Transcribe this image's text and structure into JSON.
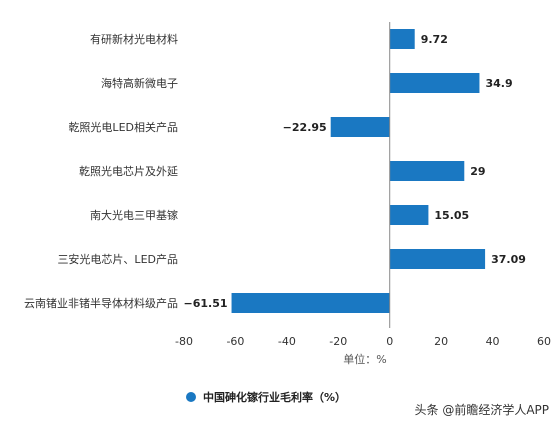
{
  "chart_data": {
    "type": "bar",
    "orientation": "horizontal",
    "categories": [
      "有研新材光电材料",
      "海特高新微电子",
      "乾照光电LED相关产品",
      "乾照光电芯片及外延",
      "南大光电三甲基镓",
      "三安光电芯片、LED产品",
      "云南锗业非锗半导体材料级产品"
    ],
    "series": [
      {
        "name": "中国砷化镓行业毛利率（%）",
        "values": [
          9.72,
          34.9,
          -22.95,
          29,
          15.05,
          37.09,
          -61.51
        ],
        "value_labels": [
          "9.72",
          "34.9",
          "−22.95",
          "29",
          "15.05",
          "37.09",
          "−61.51"
        ]
      }
    ],
    "xlim": [
      -80,
      60
    ],
    "xticks": [
      -80,
      -60,
      -40,
      -20,
      0,
      20,
      40,
      60
    ],
    "xtick_labels": [
      "-80",
      "-60",
      "-40",
      "-20",
      "0",
      "20",
      "40",
      "60"
    ],
    "xlabel": "单位：%",
    "grid": false,
    "legend_position": "bottom",
    "bar_color": "#1a78c2"
  },
  "watermark": {
    "source_text": "头条 @前瞻经济学人APP"
  }
}
